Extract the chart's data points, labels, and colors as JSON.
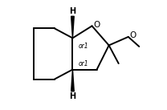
{
  "background": "#ffffff",
  "line_color": "#000000",
  "line_width": 1.4,
  "font_size_O": 7.5,
  "font_size_or1": 5.5,
  "font_size_H": 7.0,
  "xlim": [
    0.05,
    1.05
  ],
  "ylim": [
    0.05,
    0.95
  ]
}
